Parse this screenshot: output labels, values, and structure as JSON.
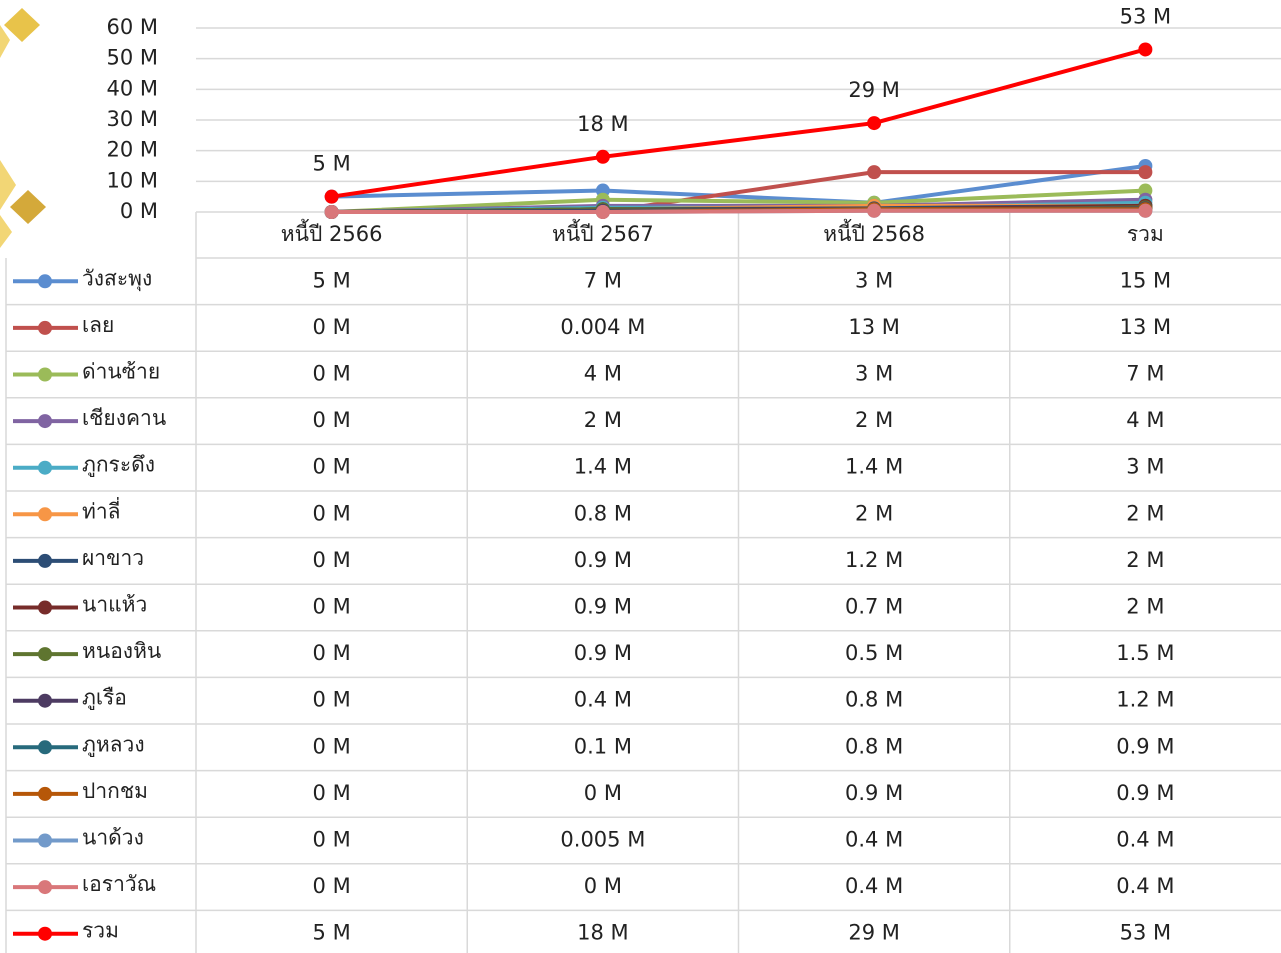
{
  "chart_data": {
    "type": "line",
    "categories": [
      "หนี้ปี 2566",
      "หนี้ปี 2567",
      "หนี้ปี 2568",
      "รวม"
    ],
    "ylim": [
      0,
      60
    ],
    "yticks": [
      {
        "value": 0,
        "label": "0 M"
      },
      {
        "value": 10,
        "label": "10 M"
      },
      {
        "value": 20,
        "label": "20 M"
      },
      {
        "value": 30,
        "label": "30 M"
      },
      {
        "value": 40,
        "label": "40 M"
      },
      {
        "value": 50,
        "label": "50 M"
      },
      {
        "value": 60,
        "label": "60 M"
      }
    ],
    "grid": true,
    "series": [
      {
        "name": "วังสะพุง",
        "color": "#5b8dd0",
        "values": [
          5,
          7,
          3,
          15
        ],
        "value_labels": [
          "5 M",
          "7 M",
          "3 M",
          "15 M"
        ]
      },
      {
        "name": "เลย",
        "color": "#c0504d",
        "values": [
          0,
          0.004,
          13,
          13
        ],
        "value_labels": [
          "0 M",
          "0.004 M",
          "13 M",
          "13 M"
        ]
      },
      {
        "name": "ด่านซ้าย",
        "color": "#9bbb59",
        "values": [
          0,
          4,
          3,
          7
        ],
        "value_labels": [
          "0 M",
          "4 M",
          "3 M",
          "7 M"
        ]
      },
      {
        "name": "เชียงคาน",
        "color": "#8064a2",
        "values": [
          0,
          2,
          2,
          4
        ],
        "value_labels": [
          "0 M",
          "2 M",
          "2 M",
          "4 M"
        ]
      },
      {
        "name": "ภูกระดึง",
        "color": "#4bacc6",
        "values": [
          0,
          1.4,
          1.4,
          3
        ],
        "value_labels": [
          "0 M",
          "1.4 M",
          "1.4 M",
          "3 M"
        ]
      },
      {
        "name": "ท่าลี่",
        "color": "#f79646",
        "values": [
          0,
          0.8,
          2,
          2
        ],
        "value_labels": [
          "0 M",
          "0.8 M",
          "2 M",
          "2 M"
        ]
      },
      {
        "name": "ผาขาว",
        "color": "#2c4d75",
        "values": [
          0,
          0.9,
          1.2,
          2
        ],
        "value_labels": [
          "0 M",
          "0.9 M",
          "1.2 M",
          "2 M"
        ]
      },
      {
        "name": "นาแห้ว",
        "color": "#772c2a",
        "values": [
          0,
          0.9,
          0.7,
          2
        ],
        "value_labels": [
          "0 M",
          "0.9 M",
          "0.7 M",
          "2 M"
        ]
      },
      {
        "name": "หนองหิน",
        "color": "#5f7530",
        "values": [
          0,
          0.9,
          0.5,
          1.5
        ],
        "value_labels": [
          "0 M",
          "0.9 M",
          "0.5 M",
          "1.5 M"
        ]
      },
      {
        "name": "ภูเรือ",
        "color": "#4d3b62",
        "values": [
          0,
          0.4,
          0.8,
          1.2
        ],
        "value_labels": [
          "0 M",
          "0.4 M",
          "0.8 M",
          "1.2 M"
        ]
      },
      {
        "name": "ภูหลวง",
        "color": "#276a7c",
        "values": [
          0,
          0.1,
          0.8,
          0.9
        ],
        "value_labels": [
          "0 M",
          "0.1 M",
          "0.8 M",
          "0.9 M"
        ]
      },
      {
        "name": "ปากชม",
        "color": "#b65708",
        "values": [
          0,
          0,
          0.9,
          0.9
        ],
        "value_labels": [
          "0 M",
          "0 M",
          "0.9 M",
          "0.9 M"
        ]
      },
      {
        "name": "นาด้วง",
        "color": "#729aca",
        "values": [
          0,
          0.005,
          0.4,
          0.4
        ],
        "value_labels": [
          "0 M",
          "0.005 M",
          "0.4 M",
          "0.4 M"
        ]
      },
      {
        "name": "เอราวัณ",
        "color": "#d9777a",
        "values": [
          0,
          0,
          0.4,
          0.4
        ],
        "value_labels": [
          "0 M",
          "0 M",
          "0.4 M",
          "0.4 M"
        ]
      },
      {
        "name": "รวม",
        "color": "#ff0000",
        "values": [
          5,
          18,
          29,
          53
        ],
        "value_labels": [
          "5 M",
          "18 M",
          "29 M",
          "53 M"
        ]
      }
    ]
  }
}
